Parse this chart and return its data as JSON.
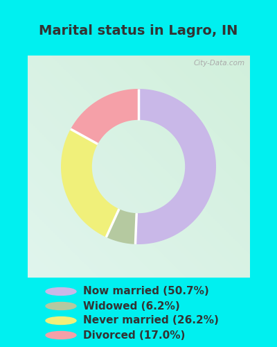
{
  "title": "Marital status in Lagro, IN",
  "values": [
    50.7,
    6.2,
    26.2,
    17.0
  ],
  "labels": [
    "Now married (50.7%)",
    "Widowed (6.2%)",
    "Never married (26.2%)",
    "Divorced (17.0%)"
  ],
  "colors": [
    "#c9b8e8",
    "#b5c9a0",
    "#f0f07a",
    "#f5a0a8"
  ],
  "legend_colors": [
    "#c9b8e8",
    "#b5c9a0",
    "#f0f07a",
    "#f5a0a8"
  ],
  "bg_cyan": "#00f0f0",
  "chart_bg_color_tl": [
    0.88,
    0.96,
    0.93
  ],
  "chart_bg_color_br": [
    0.82,
    0.94,
    0.86
  ],
  "outer_r": 0.7,
  "inner_r": 0.42,
  "title_fontsize": 14,
  "legend_fontsize": 11,
  "watermark": "City-Data.com",
  "wedge_order": [
    0,
    1,
    2,
    3
  ],
  "clockwise_order": [
    0,
    1,
    2,
    3
  ],
  "text_color": "#333333"
}
